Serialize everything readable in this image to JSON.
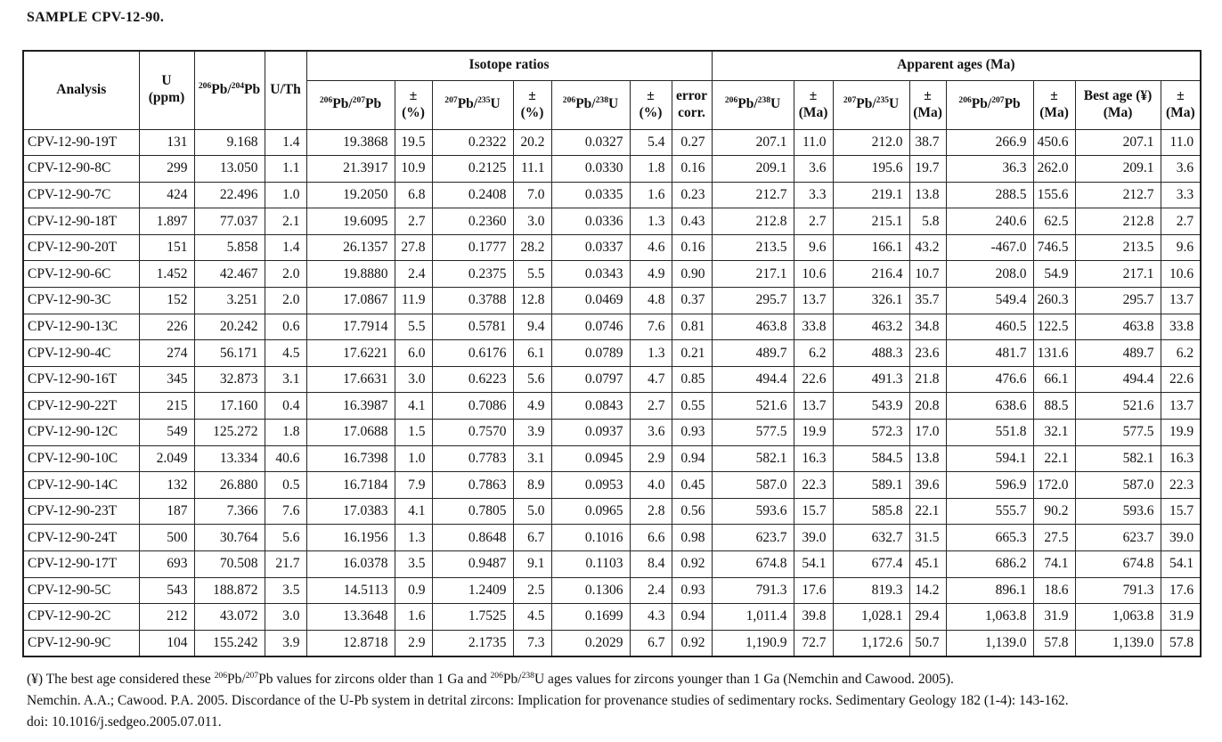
{
  "title": "SAMPLE CPV-12-90.",
  "table": {
    "group_headers": {
      "isotope": "Isotope ratios",
      "ages": "Apparent ages (Ma)"
    },
    "top_headers": {
      "analysis": "Analysis",
      "u_ppm": "U\n(ppm)",
      "pb206_pb204": "^206^Pb/^204^Pb",
      "u_th": "U/Th"
    },
    "sub_headers": [
      {
        "label": "^206^Pb/^207^Pb"
      },
      {
        "label": "±\n(%)"
      },
      {
        "label": "^207^Pb/^235^U"
      },
      {
        "label": "±\n(%)"
      },
      {
        "label": "^206^Pb/^238^U"
      },
      {
        "label": "±\n(%)"
      },
      {
        "label": "error\ncorr."
      },
      {
        "label": "^206^Pb/^238^U"
      },
      {
        "label": "±\n(Ma)"
      },
      {
        "label": "^207^Pb/^235^U"
      },
      {
        "label": "±\n(Ma)"
      },
      {
        "label": "^206^Pb/^207^Pb"
      },
      {
        "label": "±\n(Ma)"
      },
      {
        "label": "Best age (¥)\n(Ma)"
      },
      {
        "label": "±\n(Ma)"
      }
    ],
    "column_keys": [
      "analysis",
      "u_ppm",
      "pb206_pb204",
      "u_th",
      "ratio_206_207",
      "ratio_206_207_err_pct",
      "ratio_207_235",
      "ratio_207_235_err_pct",
      "ratio_206_238",
      "ratio_206_238_err_pct",
      "error_corr",
      "age_206_238",
      "age_206_238_err",
      "age_207_235",
      "age_207_235_err",
      "age_206_207",
      "age_206_207_err",
      "best_age",
      "best_age_err"
    ],
    "rows": [
      [
        "CPV-12-90-19T",
        "131",
        "9.168",
        "1.4",
        "19.3868",
        "19.5",
        "0.2322",
        "20.2",
        "0.0327",
        "5.4",
        "0.27",
        "207.1",
        "11.0",
        "212.0",
        "38.7",
        "266.9",
        "450.6",
        "207.1",
        "11.0"
      ],
      [
        "CPV-12-90-8C",
        "299",
        "13.050",
        "1.1",
        "21.3917",
        "10.9",
        "0.2125",
        "11.1",
        "0.0330",
        "1.8",
        "0.16",
        "209.1",
        "3.6",
        "195.6",
        "19.7",
        "36.3",
        "262.0",
        "209.1",
        "3.6"
      ],
      [
        "CPV-12-90-7C",
        "424",
        "22.496",
        "1.0",
        "19.2050",
        "6.8",
        "0.2408",
        "7.0",
        "0.0335",
        "1.6",
        "0.23",
        "212.7",
        "3.3",
        "219.1",
        "13.8",
        "288.5",
        "155.6",
        "212.7",
        "3.3"
      ],
      [
        "CPV-12-90-18T",
        "1.897",
        "77.037",
        "2.1",
        "19.6095",
        "2.7",
        "0.2360",
        "3.0",
        "0.0336",
        "1.3",
        "0.43",
        "212.8",
        "2.7",
        "215.1",
        "5.8",
        "240.6",
        "62.5",
        "212.8",
        "2.7"
      ],
      [
        "CPV-12-90-20T",
        "151",
        "5.858",
        "1.4",
        "26.1357",
        "27.8",
        "0.1777",
        "28.2",
        "0.0337",
        "4.6",
        "0.16",
        "213.5",
        "9.6",
        "166.1",
        "43.2",
        "-467.0",
        "746.5",
        "213.5",
        "9.6"
      ],
      [
        "CPV-12-90-6C",
        "1.452",
        "42.467",
        "2.0",
        "19.8880",
        "2.4",
        "0.2375",
        "5.5",
        "0.0343",
        "4.9",
        "0.90",
        "217.1",
        "10.6",
        "216.4",
        "10.7",
        "208.0",
        "54.9",
        "217.1",
        "10.6"
      ],
      [
        "CPV-12-90-3C",
        "152",
        "3.251",
        "2.0",
        "17.0867",
        "11.9",
        "0.3788",
        "12.8",
        "0.0469",
        "4.8",
        "0.37",
        "295.7",
        "13.7",
        "326.1",
        "35.7",
        "549.4",
        "260.3",
        "295.7",
        "13.7"
      ],
      [
        "CPV-12-90-13C",
        "226",
        "20.242",
        "0.6",
        "17.7914",
        "5.5",
        "0.5781",
        "9.4",
        "0.0746",
        "7.6",
        "0.81",
        "463.8",
        "33.8",
        "463.2",
        "34.8",
        "460.5",
        "122.5",
        "463.8",
        "33.8"
      ],
      [
        "CPV-12-90-4C",
        "274",
        "56.171",
        "4.5",
        "17.6221",
        "6.0",
        "0.6176",
        "6.1",
        "0.0789",
        "1.3",
        "0.21",
        "489.7",
        "6.2",
        "488.3",
        "23.6",
        "481.7",
        "131.6",
        "489.7",
        "6.2"
      ],
      [
        "CPV-12-90-16T",
        "345",
        "32.873",
        "3.1",
        "17.6631",
        "3.0",
        "0.6223",
        "5.6",
        "0.0797",
        "4.7",
        "0.85",
        "494.4",
        "22.6",
        "491.3",
        "21.8",
        "476.6",
        "66.1",
        "494.4",
        "22.6"
      ],
      [
        "CPV-12-90-22T",
        "215",
        "17.160",
        "0.4",
        "16.3987",
        "4.1",
        "0.7086",
        "4.9",
        "0.0843",
        "2.7",
        "0.55",
        "521.6",
        "13.7",
        "543.9",
        "20.8",
        "638.6",
        "88.5",
        "521.6",
        "13.7"
      ],
      [
        "CPV-12-90-12C",
        "549",
        "125.272",
        "1.8",
        "17.0688",
        "1.5",
        "0.7570",
        "3.9",
        "0.0937",
        "3.6",
        "0.93",
        "577.5",
        "19.9",
        "572.3",
        "17.0",
        "551.8",
        "32.1",
        "577.5",
        "19.9"
      ],
      [
        "CPV-12-90-10C",
        "2.049",
        "13.334",
        "40.6",
        "16.7398",
        "1.0",
        "0.7783",
        "3.1",
        "0.0945",
        "2.9",
        "0.94",
        "582.1",
        "16.3",
        "584.5",
        "13.8",
        "594.1",
        "22.1",
        "582.1",
        "16.3"
      ],
      [
        "CPV-12-90-14C",
        "132",
        "26.880",
        "0.5",
        "16.7184",
        "7.9",
        "0.7863",
        "8.9",
        "0.0953",
        "4.0",
        "0.45",
        "587.0",
        "22.3",
        "589.1",
        "39.6",
        "596.9",
        "172.0",
        "587.0",
        "22.3"
      ],
      [
        "CPV-12-90-23T",
        "187",
        "7.366",
        "7.6",
        "17.0383",
        "4.1",
        "0.7805",
        "5.0",
        "0.0965",
        "2.8",
        "0.56",
        "593.6",
        "15.7",
        "585.8",
        "22.1",
        "555.7",
        "90.2",
        "593.6",
        "15.7"
      ],
      [
        "CPV-12-90-24T",
        "500",
        "30.764",
        "5.6",
        "16.1956",
        "1.3",
        "0.8648",
        "6.7",
        "0.1016",
        "6.6",
        "0.98",
        "623.7",
        "39.0",
        "632.7",
        "31.5",
        "665.3",
        "27.5",
        "623.7",
        "39.0"
      ],
      [
        "CPV-12-90-17T",
        "693",
        "70.508",
        "21.7",
        "16.0378",
        "3.5",
        "0.9487",
        "9.1",
        "0.1103",
        "8.4",
        "0.92",
        "674.8",
        "54.1",
        "677.4",
        "45.1",
        "686.2",
        "74.1",
        "674.8",
        "54.1"
      ],
      [
        "CPV-12-90-5C",
        "543",
        "188.872",
        "3.5",
        "14.5113",
        "0.9",
        "1.2409",
        "2.5",
        "0.1306",
        "2.4",
        "0.93",
        "791.3",
        "17.6",
        "819.3",
        "14.2",
        "896.1",
        "18.6",
        "791.3",
        "17.6"
      ],
      [
        "CPV-12-90-2C",
        "212",
        "43.072",
        "3.0",
        "13.3648",
        "1.6",
        "1.7525",
        "4.5",
        "0.1699",
        "4.3",
        "0.94",
        "1,011.4",
        "39.8",
        "1,028.1",
        "29.4",
        "1,063.8",
        "31.9",
        "1,063.8",
        "31.9"
      ],
      [
        "CPV-12-90-9C",
        "104",
        "155.242",
        "3.9",
        "12.8718",
        "2.9",
        "2.1735",
        "7.3",
        "0.2029",
        "6.7",
        "0.92",
        "1,190.9",
        "72.7",
        "1,172.6",
        "50.7",
        "1,139.0",
        "57.8",
        "1,139.0",
        "57.8"
      ]
    ]
  },
  "footnotes": [
    "(¥) The best age considered these ^206^Pb/^207^Pb values for zircons older than 1 Ga and ^206^Pb/^238^U ages values for zircons younger than 1 Ga (Nemchin and Cawood. 2005).",
    "Nemchin. A.A.; Cawood. P.A. 2005. Discordance of the U-Pb system in detrital zircons: Implication for provenance studies of sedimentary rocks. Sedimentary Geology 182 (1-4): 143-162.",
    "doi: 10.1016/j.sedgeo.2005.07.011."
  ]
}
